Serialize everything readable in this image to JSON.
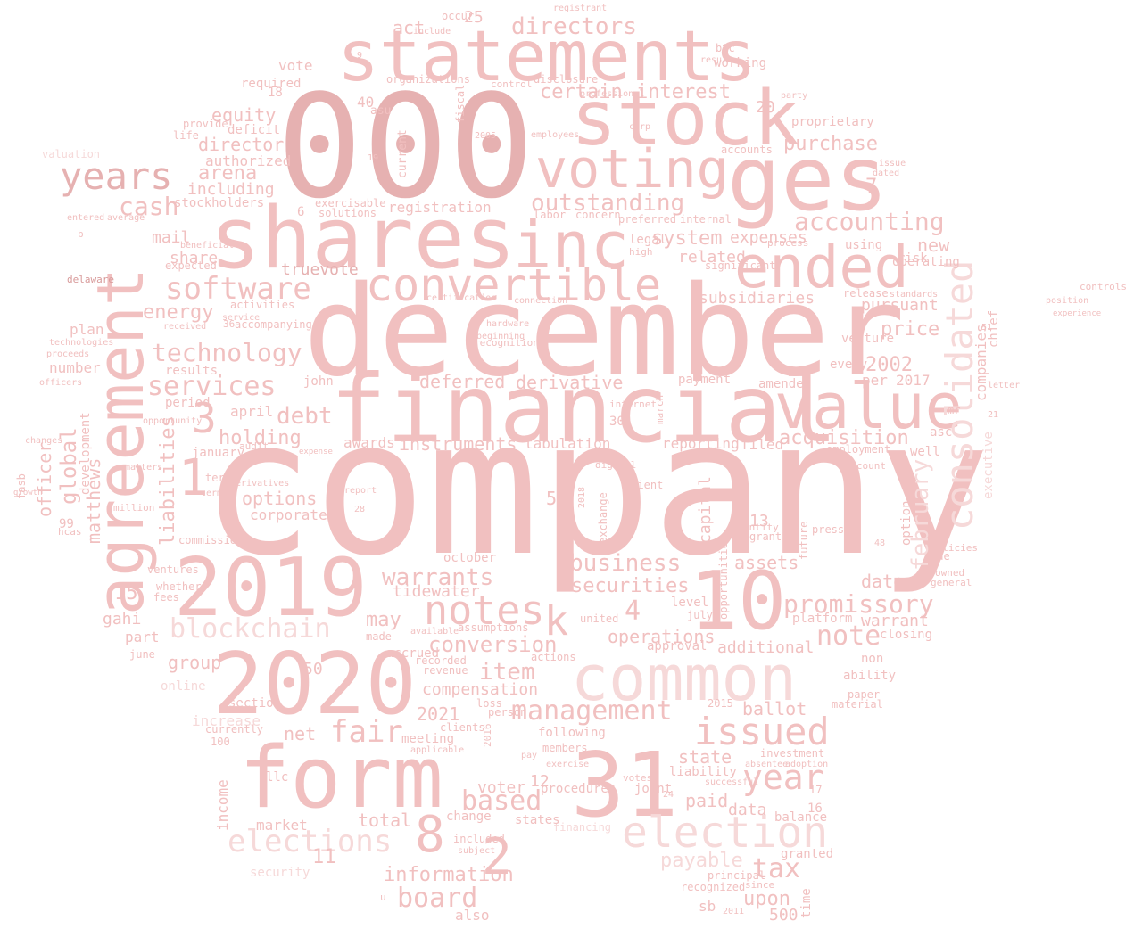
{
  "colors": {
    "background": "#ffffff",
    "light": "#f6d9d9",
    "mid": "#f1c0c0",
    "deep": "#e6b1b1",
    "strong": "#d89a9a"
  },
  "words": [
    "company",
    "december",
    "000",
    "shares",
    "financial",
    "statements",
    "stock",
    "ges",
    "voting",
    "inc",
    "agreement",
    "form",
    "31",
    "2020",
    "2019",
    "common",
    "election",
    "10",
    "value",
    "ended",
    "convertible",
    "consolidated",
    "notes",
    "years",
    "software",
    "technology",
    "services",
    "cash",
    "blockchain",
    "issued",
    "elections",
    "year",
    "promissory",
    "management",
    "fair",
    "board",
    "tax",
    "accounting",
    "outstanding",
    "directors",
    "certain",
    "interest",
    "purchase",
    "acquisition",
    "item",
    "warrants",
    "conversion",
    "compensation",
    "information",
    "based",
    "note",
    "business",
    "securities",
    "february",
    "2002",
    "price",
    "system",
    "expenses",
    "related",
    "subsidiaries",
    "debt",
    "holding",
    "global",
    "energy",
    "arena",
    "including",
    "director",
    "equity",
    "instruments",
    "deferred",
    "derivative",
    "payable",
    "assets",
    "ballot",
    "operations",
    "additional",
    "pursuant",
    "date",
    "warrant",
    "tidewater",
    "accrued",
    "october",
    "k",
    "2021",
    "meeting",
    "voter",
    "market",
    "total",
    "state",
    "paid",
    "data",
    "upon",
    "also",
    "liabilities",
    "officer",
    "matthews",
    "options",
    "corporate",
    "group",
    "capital",
    "vote",
    "required",
    "act",
    "registration",
    "truevote",
    "mail",
    "share",
    "plan",
    "number",
    "results",
    "gahi",
    "part",
    "may",
    "net",
    "income",
    "llc",
    "new",
    "every",
    "per",
    "2017",
    "april",
    "reporting",
    "filed",
    "tabulation",
    "awards",
    "john",
    "amended",
    "payment",
    "working",
    "proprietary",
    "stockholders",
    "authorized",
    "deficit",
    "exercisable",
    "solutions",
    "internal",
    "preferred",
    "concern",
    "labor",
    "legal",
    "high",
    "risk",
    "using",
    "operating",
    "release",
    "standards",
    "controls",
    "venture",
    "companies",
    "chief",
    "executive",
    "option",
    "asc",
    "well",
    "employment",
    "discount",
    "platform",
    "closing",
    "approval",
    "level",
    "july",
    "united",
    "online",
    "increase",
    "section",
    "currently",
    "june",
    "ability",
    "non",
    "material",
    "paper",
    "joint",
    "votes",
    "liability",
    "successful",
    "balance",
    "granted",
    "security",
    "financing",
    "states",
    "change",
    "included",
    "subject",
    "recognized",
    "principal",
    "since",
    "time",
    "500",
    "sb",
    "investment",
    "adoption",
    "absentee",
    "procedures",
    "exercise",
    "members",
    "pay",
    "applicable",
    "clients",
    "following",
    "loss",
    "person",
    "revenue",
    "recorded",
    "actions",
    "assumptions",
    "available",
    "made",
    "ventures",
    "whether",
    "fees",
    "commission",
    "million",
    "term",
    "terms",
    "derivatives",
    "report",
    "audit",
    "expense",
    "january",
    "period",
    "opportunity",
    "development",
    "matters",
    "hcas",
    "fasb",
    "changes",
    "growth",
    "99",
    "delaware",
    "valuation",
    "entered",
    "average",
    "beneficial",
    "expected",
    "activities",
    "accompanying",
    "service",
    "received",
    "technologies",
    "proceeds",
    "officers",
    "provide",
    "life",
    "organizations",
    "disclosure",
    "control",
    "employees",
    "corp",
    "accounts",
    "dated",
    "issue",
    "result",
    "btc",
    "party",
    "registrant",
    "occur",
    "include",
    "professional",
    "fiscal",
    "current",
    "asu",
    "recognition",
    "beginning",
    "hardware",
    "connection",
    "certification",
    "internet",
    "march",
    "digital",
    "client",
    "exchange",
    "opportunities",
    "entity",
    "grant",
    "press",
    "future",
    "policies",
    "owned",
    "due",
    "general",
    "mr",
    "letter",
    "fair value",
    "significant",
    "process",
    "position",
    "experience",
    "e",
    "b",
    "u",
    "1",
    "2",
    "3",
    "4",
    "5",
    "6",
    "7",
    "8",
    "9",
    "11",
    "12",
    "13",
    "14",
    "15",
    "16",
    "17",
    "18",
    "19",
    "20",
    "21",
    "24",
    "25",
    "28",
    "30",
    "36",
    "40",
    "48",
    "50",
    "51",
    "100",
    "2005",
    "2011",
    "2015",
    "2016",
    "2018",
    "2013"
  ]
}
